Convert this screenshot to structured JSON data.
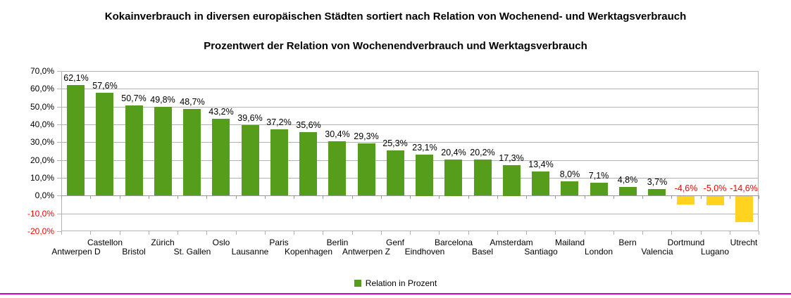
{
  "page": {
    "title": "Kokainverbrauch in diversen europäischen Städten sortiert nach Relation von Wochenend- und Werktagsverbrauch",
    "subtitle": "Prozentwert der Relation von Wochenendverbrauch und Werktagsverbrauch"
  },
  "legend": {
    "label": "Relation in Prozent"
  },
  "chart_data": {
    "type": "bar",
    "title": "Kokainverbrauch in diversen europäischen Städten sortiert nach Relation von Wochenend- und Werktagsverbrauch",
    "subtitle": "Prozentwert der Relation von Wochenendverbrauch und Werktagsverbrauch",
    "xlabel": "",
    "ylabel": "",
    "categories": [
      "Antwerpen D",
      "Castellon",
      "Bristol",
      "Zürich",
      "St. Gallen",
      "Oslo",
      "Lausanne",
      "Paris",
      "Kopenhagen",
      "Berlin",
      "Antwerpen Z",
      "Genf",
      "Eindhoven",
      "Barcelona",
      "Basel",
      "Amsterdam",
      "Santiago",
      "Mailand",
      "London",
      "Bern",
      "Valencia",
      "Dortmund",
      "Lugano",
      "Utrecht"
    ],
    "values": [
      62.1,
      57.6,
      50.7,
      49.8,
      48.7,
      43.2,
      39.6,
      37.2,
      35.6,
      30.4,
      29.3,
      25.3,
      23.1,
      20.4,
      20.2,
      17.3,
      13.4,
      8.0,
      7.1,
      4.8,
      3.7,
      -4.6,
      -5.0,
      -14.6
    ],
    "value_labels": [
      "62,1%",
      "57,6%",
      "50,7%",
      "49,8%",
      "48,7%",
      "43,2%",
      "39,6%",
      "37,2%",
      "35,6%",
      "30,4%",
      "29,3%",
      "25,3%",
      "23,1%",
      "20,4%",
      "20,2%",
      "17,3%",
      "13,4%",
      "8,0%",
      "7,1%",
      "4,8%",
      "3,7%",
      "-4,6%",
      "-5,0%",
      "-14,6%"
    ],
    "ylim": [
      -20,
      70
    ],
    "grid": true,
    "y_ticks": [
      {
        "value": 70,
        "label": "70,0%"
      },
      {
        "value": 60,
        "label": "60,0%"
      },
      {
        "value": 50,
        "label": "50,0%"
      },
      {
        "value": 40,
        "label": "40,0%"
      },
      {
        "value": 30,
        "label": "30,0%"
      },
      {
        "value": 20,
        "label": "20,0%"
      },
      {
        "value": 10,
        "label": "10,0%"
      },
      {
        "value": 0,
        "label": "0,0%"
      },
      {
        "value": -10,
        "label": "-10,0%"
      },
      {
        "value": -20,
        "label": "-20,0%"
      }
    ],
    "legend": {
      "position": "bottom",
      "entries": [
        "Relation in Prozent"
      ]
    },
    "colors": {
      "positive_bar": "#579d1c",
      "negative_bar": "#ffd320",
      "positive_label": "#000000",
      "negative_label": "#ff0000",
      "grid": "#b3b3b3",
      "axis": "#9a9a9a",
      "accent_line": "#cc00cc"
    }
  }
}
